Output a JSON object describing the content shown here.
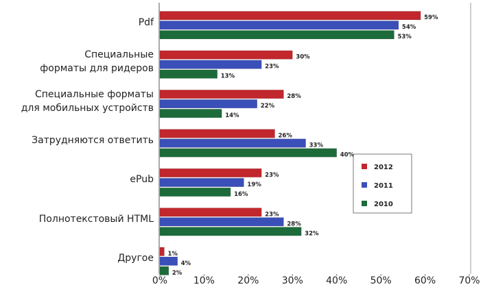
{
  "chart_data": {
    "type": "bar",
    "orientation": "horizontal",
    "categories": [
      "Pdf",
      "Специальные\nформаты для ридеров",
      "Специальные форматы\nдля мобильных устройств",
      "Затрудняются ответить",
      "ePub",
      "Полнотекстовый HTML",
      "Другое"
    ],
    "series": [
      {
        "name": "2012",
        "color": "#c1272d",
        "values": [
          59,
          30,
          28,
          26,
          23,
          23,
          1
        ],
        "value_labels": [
          "59%",
          "30%",
          "28%",
          "26%",
          "23%",
          "23%",
          "1%"
        ]
      },
      {
        "name": "2011",
        "color": "#3b4fb8",
        "values": [
          54,
          23,
          22,
          33,
          19,
          28,
          4
        ],
        "value_labels": [
          "54%",
          "23%",
          "22%",
          "33%",
          "19%",
          "28%",
          "4%"
        ]
      },
      {
        "name": "2010",
        "color": "#1d6b3b",
        "values": [
          53,
          13,
          14,
          40,
          16,
          32,
          2
        ],
        "value_labels": [
          "53%",
          "13%",
          "14%",
          "40%",
          "16%",
          "32%",
          "2%"
        ]
      }
    ],
    "xlim": [
      0,
      70
    ],
    "xticks": [
      {
        "value": 0,
        "label": "0%"
      },
      {
        "value": 10,
        "label": "10%"
      },
      {
        "value": 20,
        "label": "20%"
      },
      {
        "value": 30,
        "label": "30%"
      },
      {
        "value": 40,
        "label": "40%"
      },
      {
        "value": 50,
        "label": "50%"
      },
      {
        "value": 60,
        "label": "60%"
      },
      {
        "value": 70,
        "label": "70%"
      }
    ],
    "grid": false,
    "legend": "right"
  }
}
